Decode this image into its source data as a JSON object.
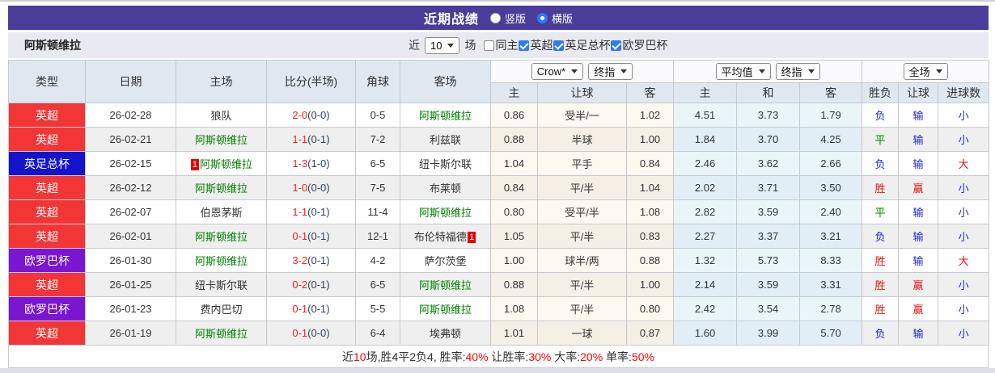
{
  "title_bar": {
    "title": "近期战绩",
    "radios": [
      {
        "label": "竖版",
        "checked": false
      },
      {
        "label": "横版",
        "checked": true
      }
    ]
  },
  "filter_bar": {
    "team": "阿斯顿维拉",
    "prefix": "近",
    "count": "10",
    "suffix": "场",
    "checkboxes": [
      {
        "label": "同主",
        "checked": false
      },
      {
        "label": "英超",
        "checked": true
      },
      {
        "label": "英足总杯",
        "checked": true
      },
      {
        "label": "欧罗巴杯",
        "checked": true
      }
    ]
  },
  "table": {
    "selects": {
      "odds_company": "Crow*",
      "odds_stage": "终指",
      "avg_company": "平均值",
      "avg_stage": "终指",
      "scope": "全场"
    },
    "col_headers": {
      "type": "类型",
      "date": "日期",
      "home": "主场",
      "score": "比分(半场)",
      "corners": "角球",
      "away": "客场",
      "odds_home": "主",
      "odds_handicap": "让球",
      "odds_away": "客",
      "avg_home": "主",
      "avg_draw": "和",
      "avg_away": "客",
      "result_wdl": "胜负",
      "result_handicap": "让球",
      "result_goals": "进球数"
    },
    "rows": [
      {
        "type": "英超",
        "type_key": "epl_red",
        "date": "26-02-28",
        "home": {
          "name": "狼队",
          "focus": false
        },
        "score": "2-0",
        "half": "(0-0)",
        "corners": "0-5",
        "away": {
          "name": "阿斯顿维拉",
          "focus": true
        },
        "odds": [
          "0.86",
          "受半/一",
          "1.02"
        ],
        "avg": [
          "4.51",
          "3.73",
          "1.79"
        ],
        "res": [
          [
            "负",
            "loss_blue"
          ],
          [
            "输",
            "loss_blue"
          ],
          [
            "小",
            "loss_blue"
          ]
        ]
      },
      {
        "type": "英超",
        "type_key": "epl_red",
        "date": "26-02-21",
        "home": {
          "name": "阿斯顿维拉",
          "focus": true
        },
        "score": "1-1",
        "half": "(0-1)",
        "corners": "7-2",
        "away": {
          "name": "利兹联",
          "focus": false
        },
        "odds": [
          "0.88",
          "半球",
          "1.00"
        ],
        "avg": [
          "1.84",
          "3.70",
          "4.25"
        ],
        "res": [
          [
            "平",
            "draw_green"
          ],
          [
            "输",
            "loss_blue"
          ],
          [
            "小",
            "loss_blue"
          ]
        ]
      },
      {
        "type": "英足总杯",
        "type_key": "facup_blue",
        "date": "26-02-15",
        "home": {
          "name": "阿斯顿维拉",
          "focus": true,
          "badge": "1",
          "badge_side": "left"
        },
        "score": "1-3",
        "half": "(1-0)",
        "corners": "6-5",
        "away": {
          "name": "纽卡斯尔联",
          "focus": false
        },
        "odds": [
          "1.04",
          "平手",
          "0.84"
        ],
        "avg": [
          "2.46",
          "3.62",
          "2.66"
        ],
        "res": [
          [
            "负",
            "loss_blue"
          ],
          [
            "输",
            "loss_blue"
          ],
          [
            "大",
            "win_red"
          ]
        ]
      },
      {
        "type": "英超",
        "type_key": "epl_red",
        "date": "26-02-12",
        "home": {
          "name": "阿斯顿维拉",
          "focus": true
        },
        "score": "1-0",
        "half": "(0-0)",
        "corners": "7-5",
        "away": {
          "name": "布莱顿",
          "focus": false
        },
        "odds": [
          "0.84",
          "平/半",
          "1.04"
        ],
        "avg": [
          "2.02",
          "3.71",
          "3.50"
        ],
        "res": [
          [
            "胜",
            "win_red"
          ],
          [
            "赢",
            "win_red"
          ],
          [
            "小",
            "loss_blue"
          ]
        ]
      },
      {
        "type": "英超",
        "type_key": "epl_red",
        "date": "26-02-07",
        "home": {
          "name": "伯恩茅斯",
          "focus": false
        },
        "score": "1-1",
        "half": "(0-1)",
        "corners": "11-4",
        "away": {
          "name": "阿斯顿维拉",
          "focus": true
        },
        "odds": [
          "0.80",
          "受平/半",
          "1.08"
        ],
        "avg": [
          "2.82",
          "3.59",
          "2.40"
        ],
        "res": [
          [
            "平",
            "draw_green"
          ],
          [
            "输",
            "loss_blue"
          ],
          [
            "小",
            "loss_blue"
          ]
        ]
      },
      {
        "type": "英超",
        "type_key": "epl_red",
        "date": "26-02-01",
        "home": {
          "name": "阿斯顿维拉",
          "focus": true
        },
        "score": "0-1",
        "half": "(0-1)",
        "corners": "12-1",
        "away": {
          "name": "布伦特福德",
          "focus": false,
          "badge": "1",
          "badge_side": "right"
        },
        "odds": [
          "1.05",
          "平/半",
          "0.83"
        ],
        "avg": [
          "2.27",
          "3.37",
          "3.21"
        ],
        "res": [
          [
            "负",
            "loss_blue"
          ],
          [
            "输",
            "loss_blue"
          ],
          [
            "小",
            "loss_blue"
          ]
        ]
      },
      {
        "type": "欧罗巴杯",
        "type_key": "europa_purple",
        "date": "26-01-30",
        "home": {
          "name": "阿斯顿维拉",
          "focus": true
        },
        "score": "3-2",
        "half": "(0-1)",
        "corners": "4-2",
        "away": {
          "name": "萨尔茨堡",
          "focus": false
        },
        "odds": [
          "1.00",
          "球半/两",
          "0.88"
        ],
        "avg": [
          "1.32",
          "5.73",
          "8.33"
        ],
        "res": [
          [
            "胜",
            "win_red"
          ],
          [
            "输",
            "loss_blue"
          ],
          [
            "大",
            "win_red"
          ]
        ]
      },
      {
        "type": "英超",
        "type_key": "epl_red",
        "date": "26-01-25",
        "home": {
          "name": "纽卡斯尔联",
          "focus": false
        },
        "score": "0-2",
        "half": "(0-1)",
        "corners": "6-5",
        "away": {
          "name": "阿斯顿维拉",
          "focus": true
        },
        "odds": [
          "0.88",
          "平/半",
          "1.00"
        ],
        "avg": [
          "2.14",
          "3.59",
          "3.31"
        ],
        "res": [
          [
            "胜",
            "win_red"
          ],
          [
            "赢",
            "win_red"
          ],
          [
            "小",
            "loss_blue"
          ]
        ]
      },
      {
        "type": "欧罗巴杯",
        "type_key": "europa_purple",
        "date": "26-01-23",
        "home": {
          "name": "费内巴切",
          "focus": false
        },
        "score": "0-1",
        "half": "(0-1)",
        "corners": "5-5",
        "away": {
          "name": "阿斯顿维拉",
          "focus": true
        },
        "odds": [
          "1.08",
          "平/半",
          "0.80"
        ],
        "avg": [
          "2.42",
          "3.54",
          "2.78"
        ],
        "res": [
          [
            "胜",
            "win_red"
          ],
          [
            "赢",
            "win_red"
          ],
          [
            "小",
            "loss_blue"
          ]
        ]
      },
      {
        "type": "英超",
        "type_key": "epl_red",
        "date": "26-01-19",
        "home": {
          "name": "阿斯顿维拉",
          "focus": true
        },
        "score": "0-1",
        "half": "(0-0)",
        "corners": "6-4",
        "away": {
          "name": "埃弗顿",
          "focus": false
        },
        "odds": [
          "1.01",
          "一球",
          "0.87"
        ],
        "avg": [
          "1.60",
          "3.99",
          "5.70"
        ],
        "res": [
          [
            "负",
            "loss_blue"
          ],
          [
            "输",
            "loss_blue"
          ],
          [
            "小",
            "loss_blue"
          ]
        ]
      }
    ]
  },
  "summary": {
    "parts": [
      {
        "text": "近",
        "color": "dark"
      },
      {
        "text": "10",
        "color": "red"
      },
      {
        "text": "场,胜4平2负4, 胜率:",
        "color": "dark"
      },
      {
        "text": "40%",
        "color": "red"
      },
      {
        "text": " 让胜率:",
        "color": "dark"
      },
      {
        "text": "30%",
        "color": "red"
      },
      {
        "text": " 大率:",
        "color": "dark"
      },
      {
        "text": "20%",
        "color": "red"
      },
      {
        "text": " 单率:",
        "color": "dark"
      },
      {
        "text": "50%",
        "color": "red"
      }
    ]
  },
  "colors": {
    "header_purple": "#4a3d99",
    "epl_red": "#f23535",
    "facup_blue": "#1414cc",
    "europa_purple": "#7a16d2",
    "focus_team_green": "#008000",
    "score_red": "#ff1e1e",
    "half_score_navy": "#31435a",
    "win_red": "#e01414",
    "loss_blue": "#2323dd",
    "draw_green": "#008800",
    "checkbox_blue": "#2b7cf0",
    "summary_red": "#ff0000"
  }
}
